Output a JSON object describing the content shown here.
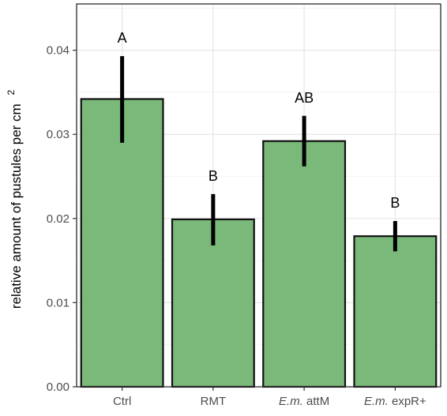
{
  "chart_data": {
    "type": "bar",
    "categories": [
      {
        "italic": "",
        "rest": "Ctrl"
      },
      {
        "italic": "",
        "rest": "RMT"
      },
      {
        "italic": "E.m.",
        "rest": " attM"
      },
      {
        "italic": "E.m.",
        "rest": " expR+"
      }
    ],
    "values": [
      0.0342,
      0.0199,
      0.0292,
      0.0179
    ],
    "error_low": [
      0.029,
      0.0168,
      0.0262,
      0.0161
    ],
    "error_high": [
      0.0393,
      0.0229,
      0.0322,
      0.0197
    ],
    "significance_labels": [
      "A",
      "B",
      "AB",
      "B"
    ],
    "ylabel": "relative amount of pustules per cm",
    "ylabel_superscript": "2",
    "xlabel": "",
    "title": "",
    "ylim": [
      0,
      0.0455
    ],
    "yticks": [
      "0.00",
      "0.01",
      "0.02",
      "0.03",
      "0.04"
    ],
    "grid": true,
    "bar_color": "#7ab97a",
    "bar_edge_color": "#111111",
    "error_color": "#000000"
  }
}
